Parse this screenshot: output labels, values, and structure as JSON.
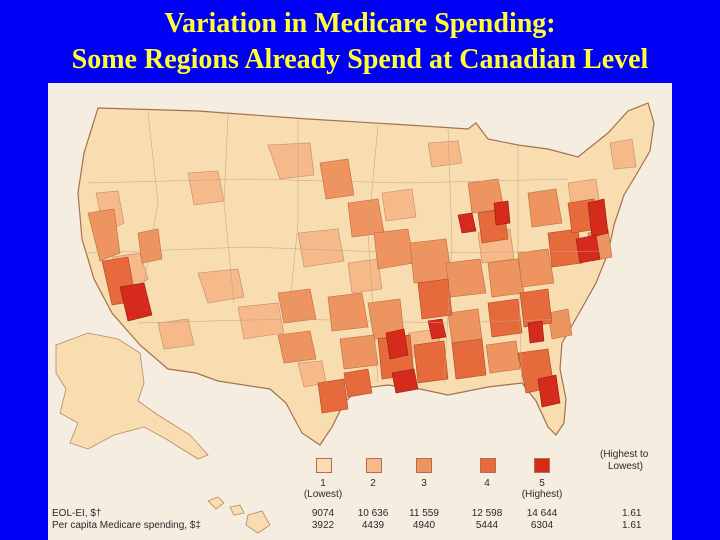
{
  "title": {
    "line1": "Variation in Medicare Spending:",
    "line2": "Some Regions Already Spend at Canadian Level"
  },
  "colors": {
    "background": "#0000f5",
    "title": "#ffff33",
    "quintile_1": "#f7ddb0",
    "quintile_2": "#f5b98a",
    "quintile_3": "#ee9460",
    "quintile_4": "#e66a3c",
    "quintile_5": "#d62a1c"
  },
  "legend": {
    "classes": [
      {
        "label": "1",
        "sublabel": "(Lowest)",
        "eol_ei": "9074",
        "spending": "3922"
      },
      {
        "label": "2",
        "sublabel": "",
        "eol_ei": "10 636",
        "spending": "4439"
      },
      {
        "label": "3",
        "sublabel": "",
        "eol_ei": "11 559",
        "spending": "4940"
      },
      {
        "label": "4",
        "sublabel": "",
        "eol_ei": "12 598",
        "spending": "5444"
      },
      {
        "label": "5",
        "sublabel": "(Highest)",
        "eol_ei": "14 644",
        "spending": "6304"
      }
    ],
    "ratio_header_1": "(Highest to",
    "ratio_header_2": "Lowest)",
    "row_eol_label": "EOL-EI, $†",
    "row_spending_label": "Per capita Medicare spending, $‡",
    "ratio_eol": "1.61",
    "ratio_spending": "1.61"
  }
}
